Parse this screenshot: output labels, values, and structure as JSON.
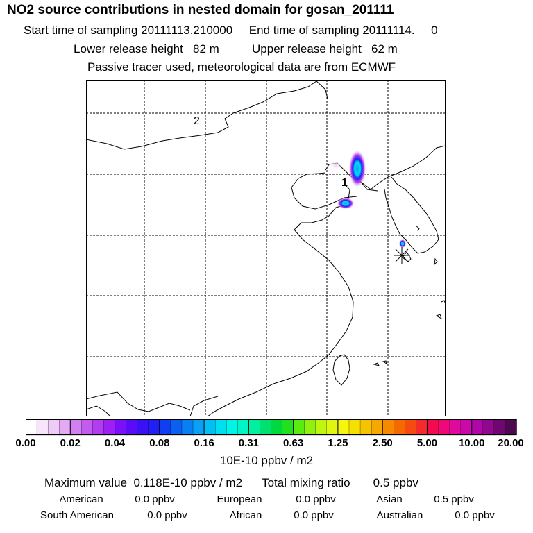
{
  "header": {
    "title": "NO2 source contributions in nested domain for gosan_201111",
    "line_sampling": "Start time of sampling 20111113.210000     End time of sampling 20111114.     0",
    "line_release": "Lower release height   82 m          Upper release height   62 m",
    "line_tracer": "Passive tracer used, meteorological data are from ECMWF"
  },
  "map": {
    "labels": {
      "label_2": "2",
      "label_1": "1"
    },
    "colors": {
      "frame": "#000000",
      "grid": "#000000",
      "coast": "#000000"
    }
  },
  "colorbar": {
    "ticks": [
      "0.00",
      "0.02",
      "0.04",
      "0.08",
      "0.16",
      "0.31",
      "0.63",
      "1.25",
      "2.50",
      "5.00",
      "10.00",
      "20.00"
    ],
    "colors": [
      "#ffffff",
      "#f7e6fb",
      "#efccf7",
      "#e3aaf3",
      "#d27ff0",
      "#c35cee",
      "#b13cf0",
      "#9d1ff3",
      "#7a10f5",
      "#5a0cf7",
      "#3a10f5",
      "#2020f5",
      "#0f3ff0",
      "#0a60f0",
      "#0a7ff3",
      "#0aa0f5",
      "#00c0f5",
      "#00dff0",
      "#00f5e6",
      "#00f5c6",
      "#00f0a0",
      "#00e070",
      "#00d840",
      "#20e020",
      "#5aeb10",
      "#90f010",
      "#c0f510",
      "#e0f510",
      "#f5f510",
      "#f5e000",
      "#f5c400",
      "#f5a800",
      "#f58a00",
      "#f56a00",
      "#f54a10",
      "#f52a2a",
      "#f50a50",
      "#f0087a",
      "#e0089e",
      "#cc08aa",
      "#b008a8",
      "#90088f",
      "#6e0870",
      "#4e0850"
    ],
    "units": "10E-10 ppbv / m2"
  },
  "summary": {
    "max_line": "Maximum value  0.118E-10 ppbv / m2      Total mixing ratio       0.5 ppbv",
    "regions": [
      {
        "name": "American",
        "value": "0.0 ppbv"
      },
      {
        "name": "European",
        "value": "0.0 ppbv"
      },
      {
        "name": "Asian",
        "value": "0.5 ppbv"
      },
      {
        "name": "South American",
        "value": "0.0 ppbv"
      },
      {
        "name": "African",
        "value": "0.0 ppbv"
      },
      {
        "name": "Australian",
        "value": "0.0 ppbv"
      }
    ]
  }
}
